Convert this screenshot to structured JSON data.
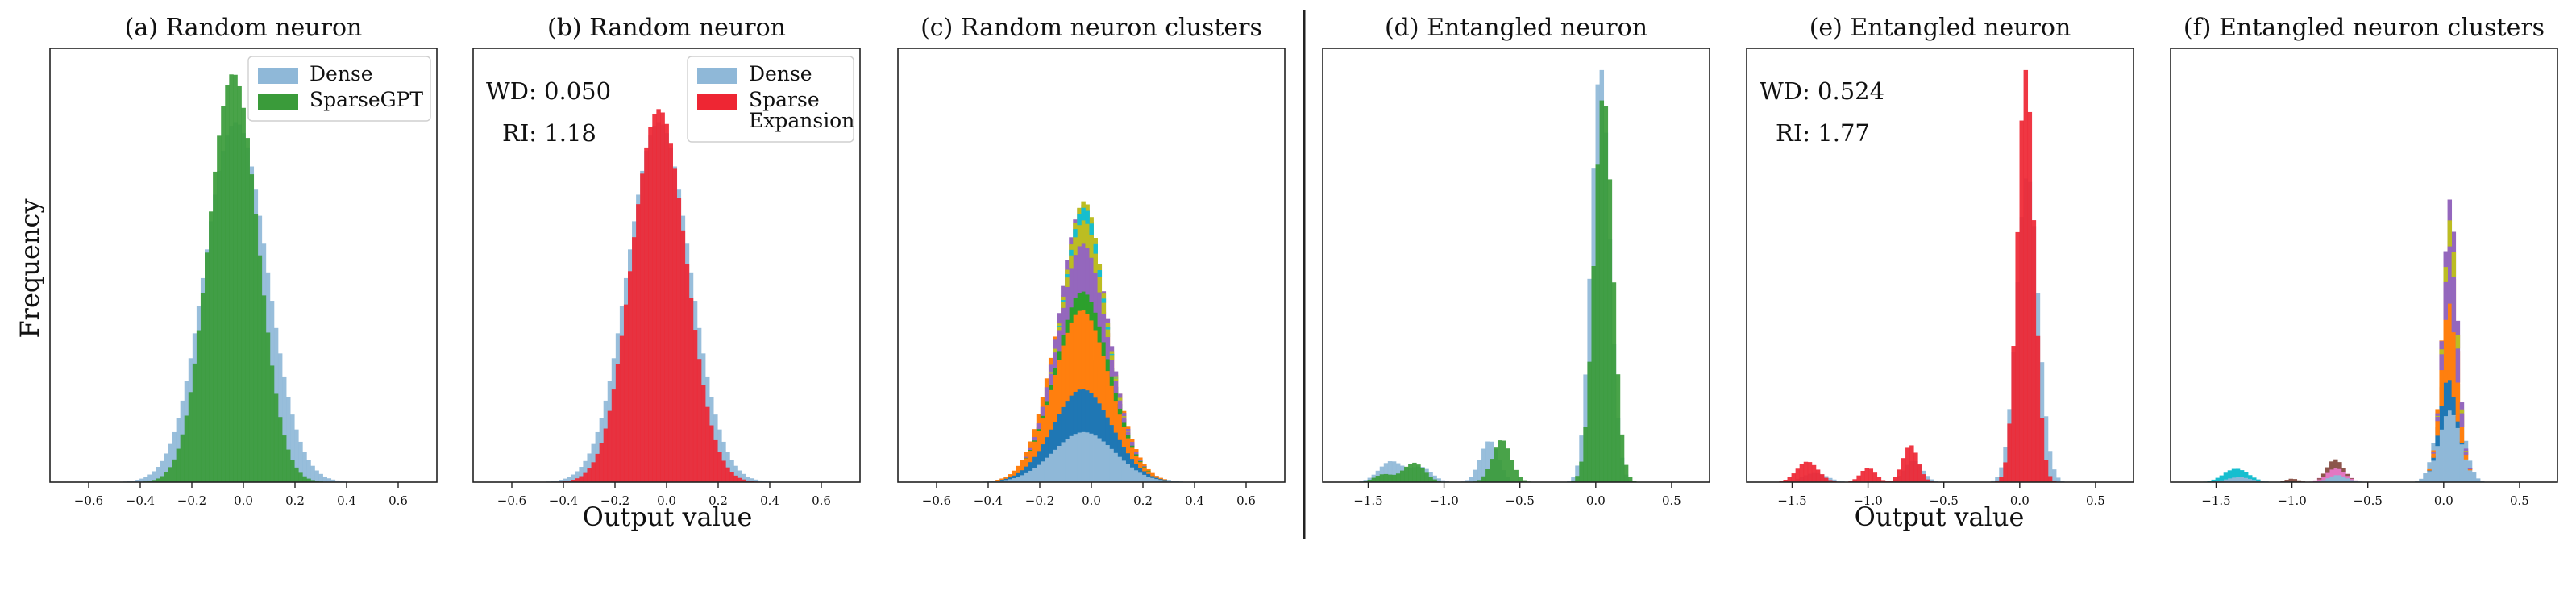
{
  "figure": {
    "ylabel": "Frequency",
    "xlabel_left": "Output value",
    "xlabel_right": "Output value"
  },
  "colors": {
    "dense": "#8fb8d8",
    "sparsegpt": "#3a9b3a",
    "sparse_expansion": "#ee2633",
    "cluster_blue": "#1f77b4",
    "cluster_orange": "#ff7f0e",
    "cluster_green": "#2ca02c",
    "cluster_purple": "#9467bd",
    "cluster_olive": "#bcbd22",
    "cluster_pink": "#e377c2",
    "cluster_brown": "#8c564b",
    "cluster_teal": "#17becf"
  },
  "chart_data": [
    {
      "type": "histogram",
      "title": "(a) Random neuron",
      "xlim": [
        -0.75,
        0.75
      ],
      "xticks": [
        "-0.6",
        "-0.4",
        "-0.2",
        "0.0",
        "0.2",
        "0.4",
        "0.6"
      ],
      "legend": {
        "placement": "top-right",
        "entries": [
          "Dense",
          "SparseGPT"
        ]
      },
      "series": [
        {
          "name": "Dense",
          "color": "#8fb8d8",
          "components": [
            {
              "mean": -0.03,
              "std": 0.12,
              "weight": 1.0
            }
          ],
          "peak": 0.83
        },
        {
          "name": "SparseGPT",
          "color": "#3a9b3a",
          "components": [
            {
              "mean": -0.04,
              "std": 0.095,
              "weight": 1.0
            }
          ],
          "peak": 0.94
        }
      ]
    },
    {
      "type": "histogram",
      "title": "(b) Random neuron",
      "xlim": [
        -0.75,
        0.75
      ],
      "xticks": [
        "-0.6",
        "-0.4",
        "-0.2",
        "0.0",
        "0.2",
        "0.4",
        "0.6"
      ],
      "annotations": [
        "WD: 0.050",
        "RI: 1.18"
      ],
      "legend": {
        "placement": "top-right",
        "entries": [
          "Dense",
          "Sparse\nExpansion"
        ]
      },
      "series": [
        {
          "name": "Dense",
          "color": "#8fb8d8",
          "components": [
            {
              "mean": -0.03,
              "std": 0.12,
              "weight": 1.0
            }
          ],
          "peak": 0.83
        },
        {
          "name": "Sparse Expansion",
          "color": "#ee2633",
          "components": [
            {
              "mean": -0.03,
              "std": 0.105,
              "weight": 1.0
            }
          ],
          "peak": 0.86
        }
      ]
    },
    {
      "type": "histogram",
      "title": "(c) Random neuron clusters",
      "xlim": [
        -0.75,
        0.75
      ],
      "xticks": [
        "-0.6",
        "-0.4",
        "-0.2",
        "0.0",
        "0.2",
        "0.4",
        "0.6"
      ],
      "stacked": true,
      "series": [
        {
          "name": "",
          "color": "#8fb8d8",
          "components": [
            {
              "mean": -0.03,
              "std": 0.12,
              "weight": 1.0
            }
          ],
          "peak": 0.21
        },
        {
          "name": "",
          "color": "#1f77b4",
          "components": [
            {
              "mean": -0.04,
              "std": 0.11,
              "weight": 1.0
            }
          ],
          "peak": 0.18
        },
        {
          "name": "",
          "color": "#ff7f0e",
          "components": [
            {
              "mean": -0.04,
              "std": 0.1,
              "weight": 1.0
            }
          ],
          "peak": 0.33
        },
        {
          "name": "",
          "color": "#2ca02c",
          "components": [
            {
              "mean": -0.02,
              "std": 0.085,
              "weight": 1.0
            }
          ],
          "peak": 0.08
        },
        {
          "name": "",
          "color": "#9467bd",
          "components": [
            {
              "mean": -0.03,
              "std": 0.075,
              "weight": 1.0
            }
          ],
          "peak": 0.2
        },
        {
          "name": "",
          "color": "#bcbd22",
          "components": [
            {
              "mean": -0.02,
              "std": 0.055,
              "weight": 1.0
            }
          ],
          "peak": 0.1
        },
        {
          "name": "",
          "color": "#17becf",
          "components": [
            {
              "mean": -0.02,
              "std": 0.045,
              "weight": 1.0
            }
          ],
          "peak": 0.03
        }
      ]
    },
    {
      "type": "histogram",
      "title": "(d) Entangled neuron",
      "xlim": [
        -1.8,
        0.75
      ],
      "xticks": [
        "-1.5",
        "-1.0",
        "-0.5",
        "0.0",
        "0.5"
      ],
      "series": [
        {
          "name": "Dense",
          "color": "#8fb8d8",
          "components": [
            {
              "mean": 0.03,
              "std": 0.06,
              "weight": 1.0
            },
            {
              "mean": -0.7,
              "std": 0.06,
              "weight": 0.1
            },
            {
              "mean": -1.35,
              "std": 0.08,
              "weight": 0.05
            },
            {
              "mean": -1.15,
              "std": 0.07,
              "weight": 0.035
            }
          ],
          "peak": 0.95
        },
        {
          "name": "SparseGPT",
          "color": "#3a9b3a",
          "components": [
            {
              "mean": 0.05,
              "std": 0.06,
              "weight": 1.0
            },
            {
              "mean": -0.62,
              "std": 0.06,
              "weight": 0.11
            },
            {
              "mean": -1.2,
              "std": 0.07,
              "weight": 0.05
            },
            {
              "mean": -1.4,
              "std": 0.06,
              "weight": 0.02
            }
          ],
          "peak": 0.88
        }
      ]
    },
    {
      "type": "histogram",
      "title": "(e) Entangled neuron",
      "xlim": [
        -1.8,
        0.75
      ],
      "xticks": [
        "-1.5",
        "-1.0",
        "-0.5",
        "0.0",
        "0.5"
      ],
      "annotations": [
        "WD: 0.524",
        "RI: 1.77"
      ],
      "series": [
        {
          "name": "Dense",
          "color": "#8fb8d8",
          "components": [
            {
              "mean": 0.05,
              "std": 0.07,
              "weight": 1.0
            },
            {
              "mean": -0.7,
              "std": 0.06,
              "weight": 0.07
            },
            {
              "mean": -1.35,
              "std": 0.08,
              "weight": 0.03
            }
          ],
          "peak": 0.7
        },
        {
          "name": "Sparse Expansion",
          "color": "#ee2633",
          "components": [
            {
              "mean": 0.04,
              "std": 0.055,
              "weight": 1.0
            },
            {
              "mean": -0.72,
              "std": 0.05,
              "weight": 0.09
            },
            {
              "mean": -1.4,
              "std": 0.07,
              "weight": 0.05
            },
            {
              "mean": -1.0,
              "std": 0.05,
              "weight": 0.035
            }
          ],
          "peak": 0.95
        }
      ]
    },
    {
      "type": "histogram",
      "title": "(f) Entangled neuron clusters",
      "xlim": [
        -1.8,
        0.75
      ],
      "xticks": [
        "-1.5",
        "-1.0",
        "-0.5",
        "0.0",
        "0.5"
      ],
      "stacked": true,
      "series": [
        {
          "name": "",
          "color": "#8fb8d8",
          "components": [
            {
              "mean": 0.04,
              "std": 0.07,
              "weight": 1.0
            },
            {
              "mean": -0.7,
              "std": 0.06,
              "weight": 0.1
            },
            {
              "mean": -1.35,
              "std": 0.08,
              "weight": 0.07
            }
          ],
          "peak": 0.3
        },
        {
          "name": "",
          "color": "#17becf",
          "components": [
            {
              "mean": -1.38,
              "std": 0.08,
              "weight": 1.0
            }
          ],
          "peak": 0.02
        },
        {
          "name": "",
          "color": "#e377c2",
          "components": [
            {
              "mean": -0.72,
              "std": 0.06,
              "weight": 1.0
            }
          ],
          "peak": 0.03
        },
        {
          "name": "",
          "color": "#8c564b",
          "components": [
            {
              "mean": -0.72,
              "std": 0.05,
              "weight": 1.0
            },
            {
              "mean": -1.0,
              "std": 0.04,
              "weight": 0.4
            }
          ],
          "peak": 0.02
        },
        {
          "name": "",
          "color": "#1f77b4",
          "components": [
            {
              "mean": 0.02,
              "std": 0.04,
              "weight": 1.0
            }
          ],
          "peak": 0.14
        },
        {
          "name": "",
          "color": "#ff7f0e",
          "components": [
            {
              "mean": 0.04,
              "std": 0.045,
              "weight": 1.0
            }
          ],
          "peak": 0.32
        },
        {
          "name": "",
          "color": "#9467bd",
          "components": [
            {
              "mean": 0.05,
              "std": 0.04,
              "weight": 1.0
            }
          ],
          "peak": 0.24
        },
        {
          "name": "",
          "color": "#bcbd22",
          "components": [
            {
              "mean": 0.05,
              "std": 0.035,
              "weight": 1.0
            }
          ],
          "peak": 0.06
        }
      ]
    }
  ]
}
